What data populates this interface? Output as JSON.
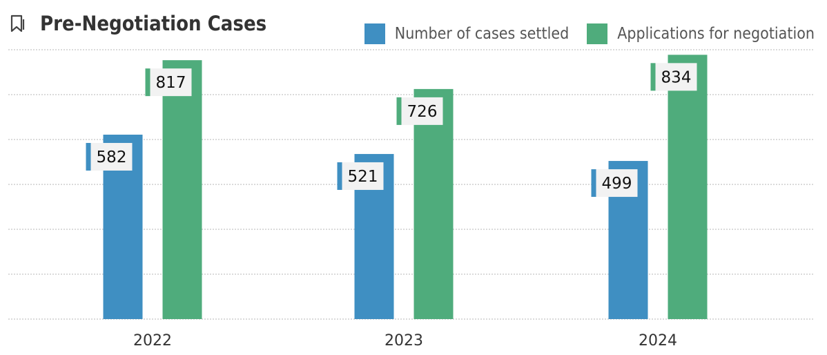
{
  "colors": {
    "settled": "#3f8fc2",
    "applications": "#4fac7c",
    "grid": "#b5b5b5",
    "label_bg": "#f2f2f2",
    "text": "#333333"
  },
  "chart_data": {
    "type": "bar",
    "title": "Pre-Negotiation Cases",
    "categories": [
      "2022",
      "2023",
      "2024"
    ],
    "series": [
      {
        "name": "Number of cases settled",
        "values": [
          582,
          521,
          499
        ]
      },
      {
        "name": "Applications for negotiation",
        "values": [
          817,
          726,
          834
        ]
      }
    ],
    "ylim": [
      0,
      850
    ],
    "grid": true,
    "legend": "top-right"
  }
}
